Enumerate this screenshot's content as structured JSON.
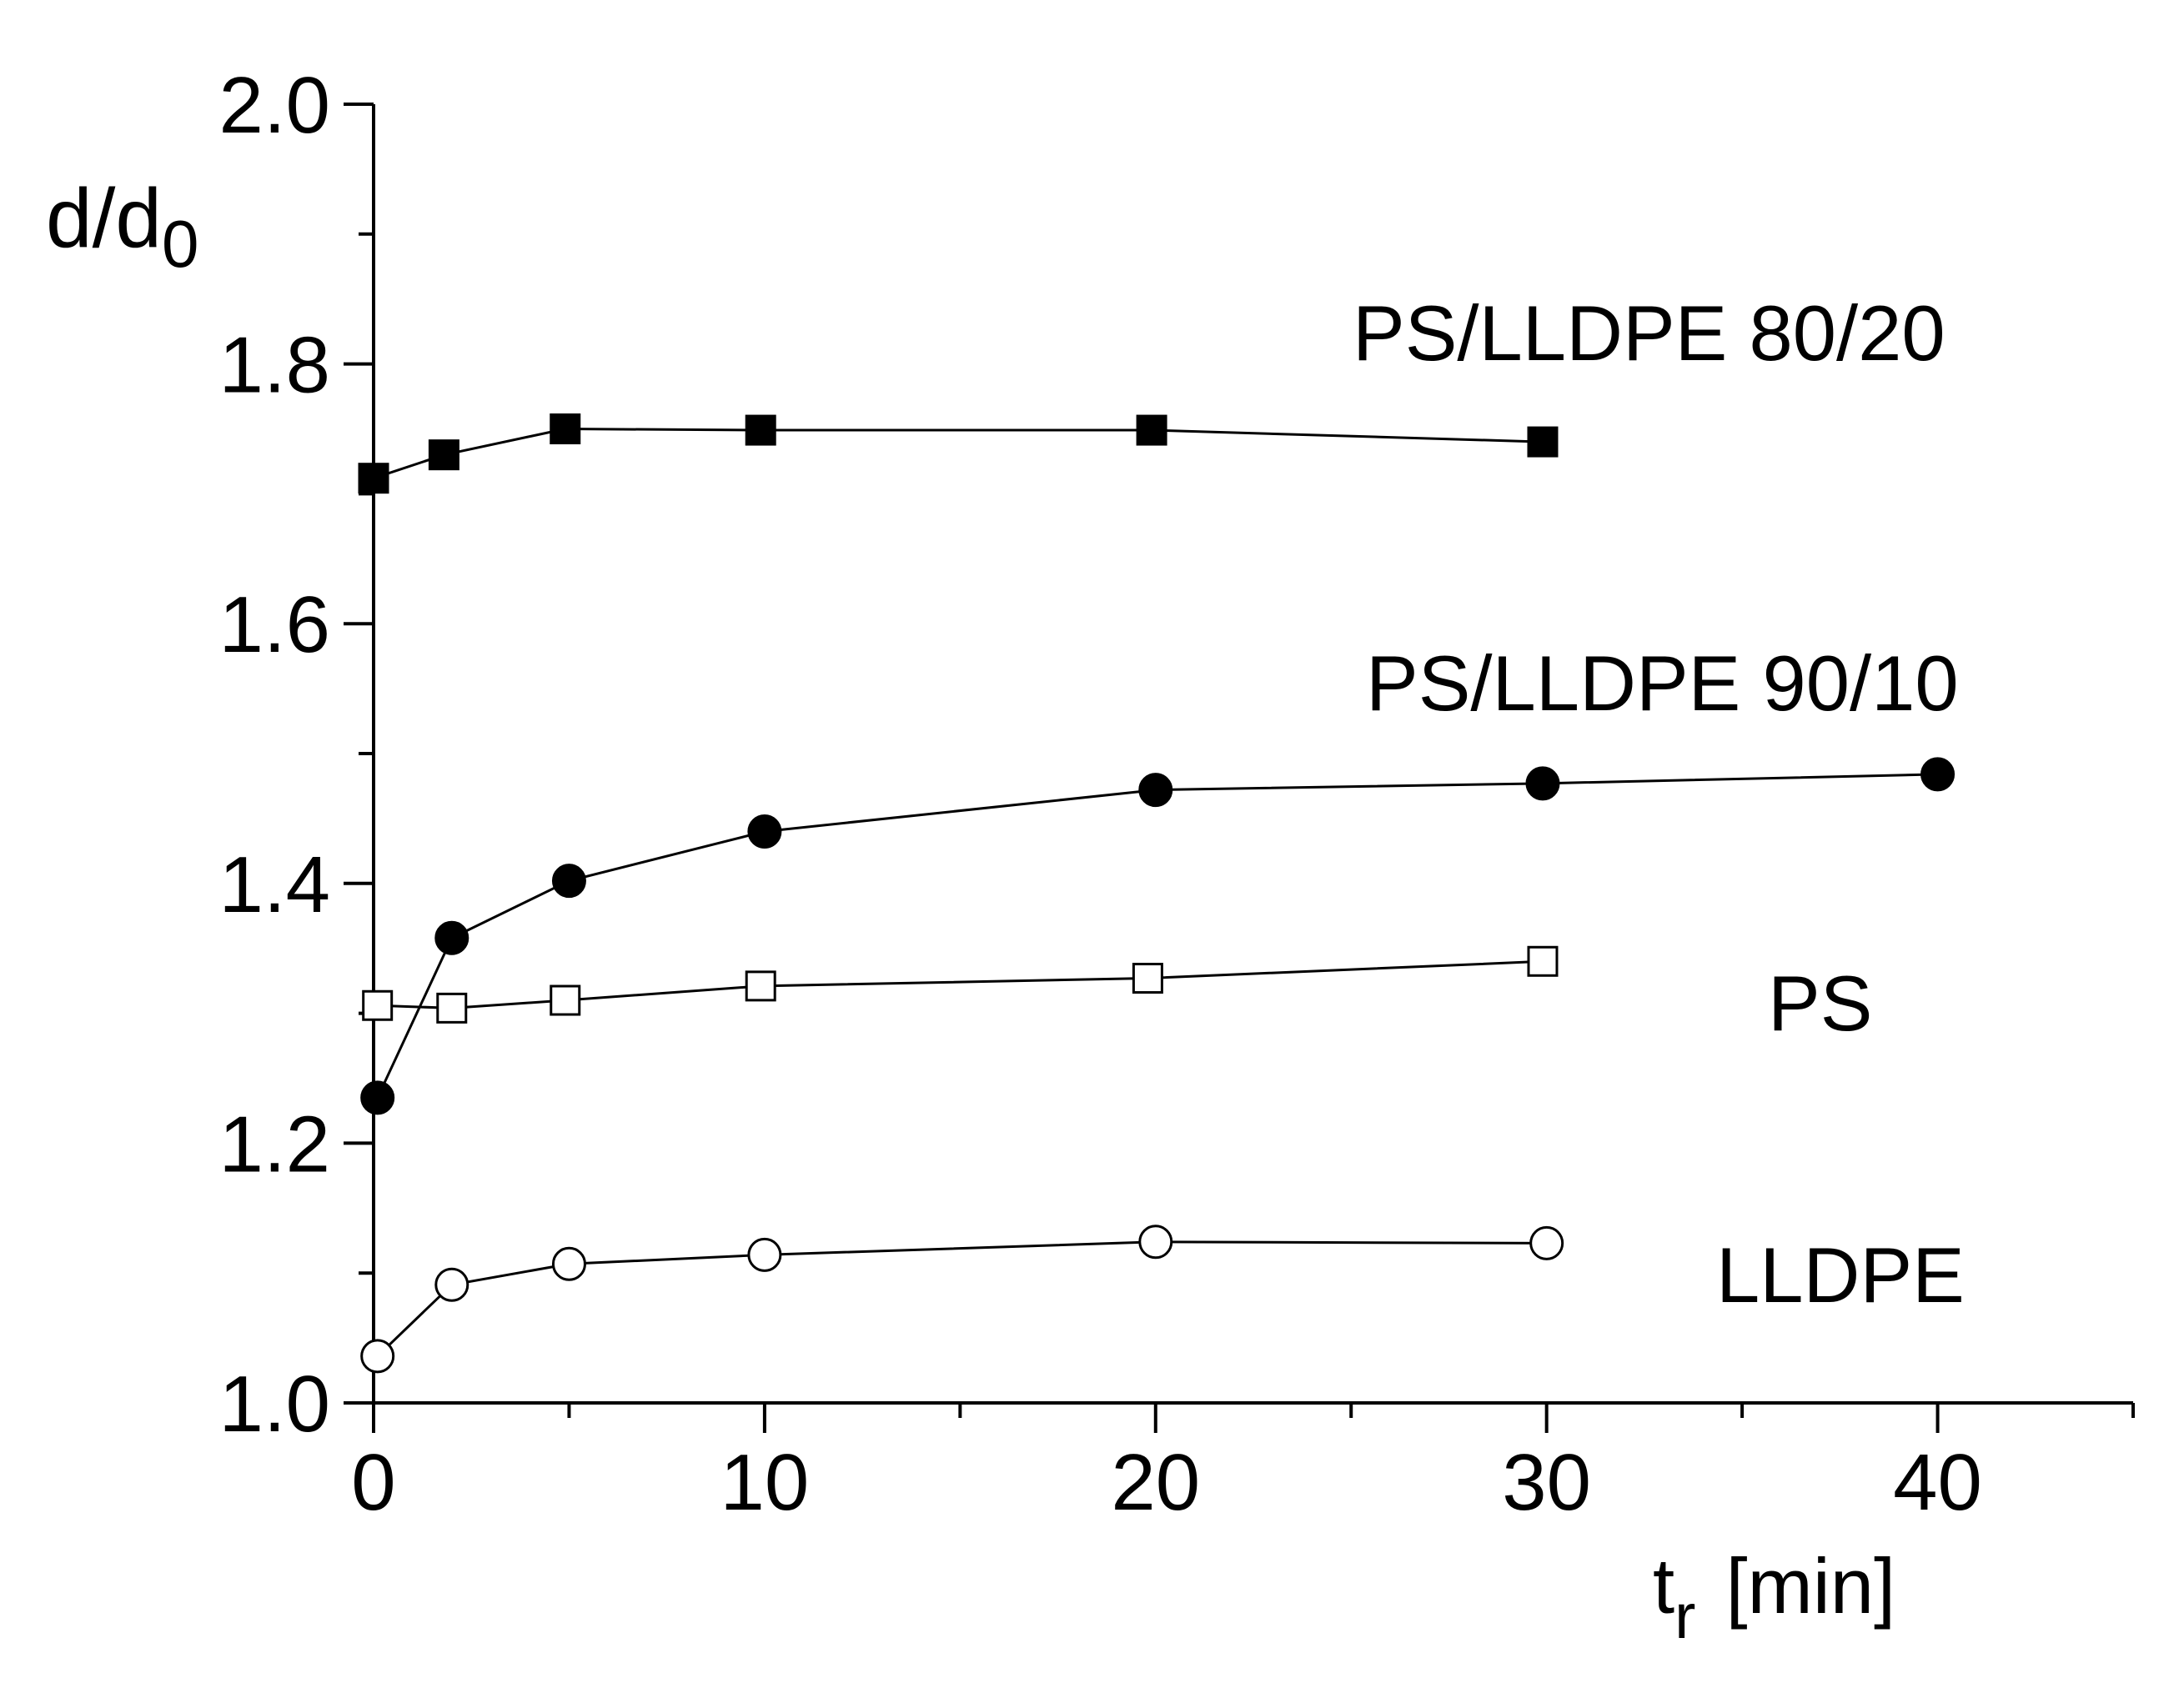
{
  "chart_data": {
    "type": "line",
    "ylabel": "d/d",
    "ylabel_sub": "0",
    "xlabel": "t",
    "xlabel_sub": "r",
    "xlabel_unit": "[min]",
    "xlim": [
      0,
      45
    ],
    "ylim": [
      1.0,
      2.0
    ],
    "x_ticks": [
      "0",
      "10",
      "20",
      "30",
      "40"
    ],
    "y_ticks": [
      "1.0",
      "1.2",
      "1.4",
      "1.6",
      "1.8",
      "2.0"
    ],
    "grid": false,
    "series": [
      {
        "name": "PS/LLDPE 80/20",
        "marker": "square-filled",
        "points": [
          [
            0,
            1.712
          ],
          [
            1.8,
            1.73
          ],
          [
            4.9,
            1.75
          ],
          [
            9.9,
            1.749
          ],
          [
            19.9,
            1.749
          ],
          [
            29.9,
            1.74
          ]
        ]
      },
      {
        "name": "PS/LLDPE 90/10",
        "marker": "circle-filled",
        "points": [
          [
            0.1,
            1.235
          ],
          [
            2.0,
            1.358
          ],
          [
            5.0,
            1.402
          ],
          [
            10.0,
            1.44
          ],
          [
            20.0,
            1.472
          ],
          [
            29.9,
            1.477
          ],
          [
            40.0,
            1.484
          ]
        ]
      },
      {
        "name": "PS",
        "marker": "square-open",
        "points": [
          [
            0.1,
            1.306
          ],
          [
            2.0,
            1.304
          ],
          [
            4.9,
            1.31
          ],
          [
            9.9,
            1.321
          ],
          [
            19.8,
            1.327
          ],
          [
            29.9,
            1.34
          ]
        ]
      },
      {
        "name": "LLDPE",
        "marker": "circle-open",
        "points": [
          [
            0.1,
            1.036
          ],
          [
            2.0,
            1.091
          ],
          [
            5.0,
            1.107
          ],
          [
            10.0,
            1.114
          ],
          [
            20.0,
            1.124
          ],
          [
            30.0,
            1.123
          ]
        ]
      }
    ]
  }
}
